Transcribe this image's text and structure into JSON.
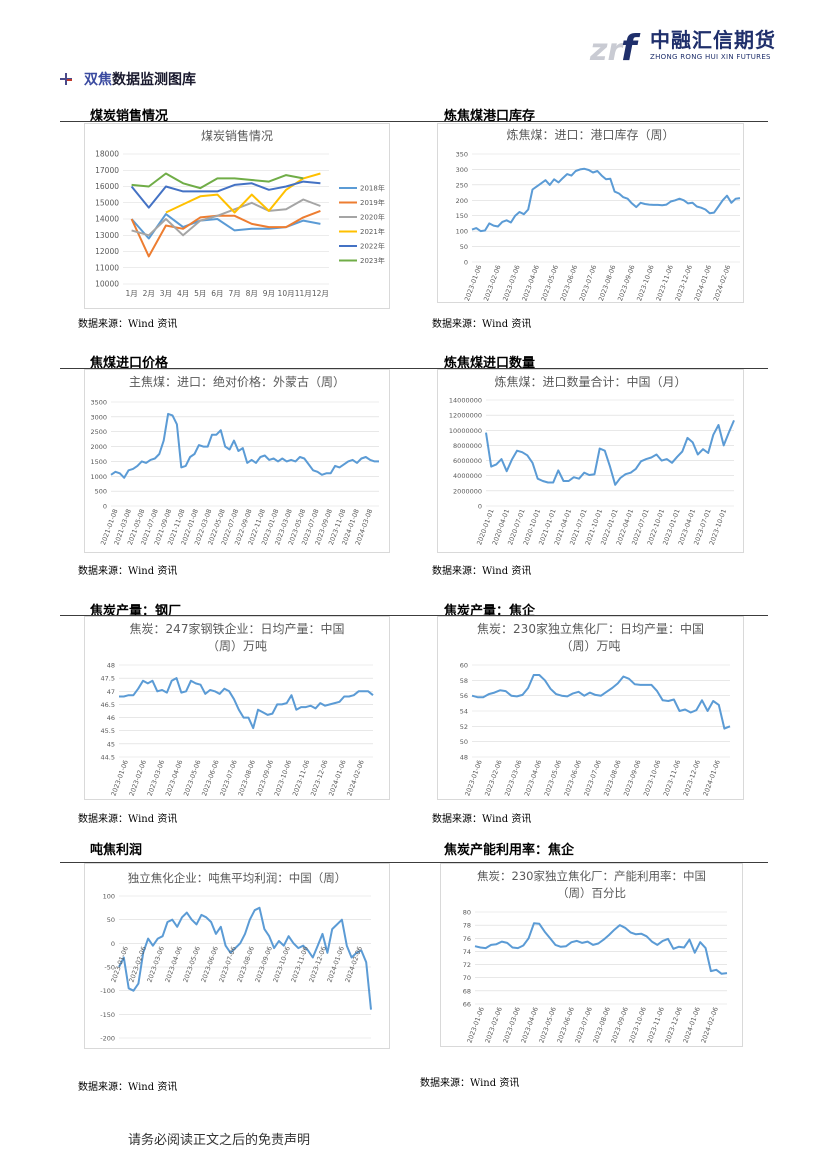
{
  "header": {
    "logo_mark": "zrf",
    "logo_cn": "中融汇信期货",
    "logo_en": "ZHONG RONG HUI XIN FUTURES",
    "logo_color": "#1f2f6b",
    "section_title_a": "双焦",
    "section_title_b": "数据监测图库"
  },
  "source_label": "数据来源：Wind 资讯",
  "footer": "请务必阅读正文之后的免责声明",
  "chart_titles": {
    "c1": "煤炭销售情况",
    "c2": "炼焦煤港口库存",
    "c3": "焦煤进口价格",
    "c4": "炼焦煤进口数量",
    "c5": "焦炭产量：钢厂",
    "c6": "焦炭产量：焦企",
    "c7": "吨焦利润",
    "c8": "焦炭产能利用率：焦企"
  },
  "chart_data": [
    {
      "id": "c1",
      "type": "line",
      "title": "煤炭销售情况",
      "categories": [
        "1月",
        "2月",
        "3月",
        "4月",
        "5月",
        "6月",
        "7月",
        "8月",
        "9月",
        "10月",
        "11月",
        "12月"
      ],
      "ylim": [
        10000,
        18000
      ],
      "yticks": [
        10000,
        11000,
        12000,
        13000,
        14000,
        15000,
        16000,
        17000,
        18000
      ],
      "legend": "right",
      "series": [
        {
          "name": "2018年",
          "color": "#5b9bd5",
          "values": [
            14000,
            12800,
            14300,
            13500,
            13900,
            14000,
            13300,
            13400,
            13400,
            13500,
            13900,
            13700
          ]
        },
        {
          "name": "2019年",
          "color": "#ed7d31",
          "values": [
            14000,
            11700,
            13600,
            13400,
            14100,
            14200,
            14200,
            13700,
            13500,
            13500,
            14100,
            14500
          ]
        },
        {
          "name": "2020年",
          "color": "#a5a5a5",
          "values": [
            13300,
            13000,
            14000,
            13000,
            13900,
            14200,
            14600,
            15000,
            14500,
            14600,
            15200,
            14800
          ]
        },
        {
          "name": "2021年",
          "color": "#ffc000",
          "values": [
            null,
            null,
            14400,
            14900,
            15400,
            15500,
            14400,
            15500,
            14500,
            15800,
            16500,
            16800
          ]
        },
        {
          "name": "2022年",
          "color": "#4472c4",
          "values": [
            16000,
            14700,
            16000,
            15700,
            15700,
            15700,
            16100,
            16200,
            15800,
            16000,
            16300,
            16200
          ]
        },
        {
          "name": "2023年",
          "color": "#70ad47",
          "values": [
            16100,
            16000,
            16800,
            16200,
            15900,
            16500,
            16500,
            16400,
            16300,
            16700,
            16500,
            null
          ]
        }
      ]
    },
    {
      "id": "c2",
      "type": "line",
      "title": "炼焦煤：进口：港口库存（周）",
      "ylim": [
        0,
        350
      ],
      "yticks": [
        0,
        50,
        100,
        150,
        200,
        250,
        300,
        350
      ],
      "xticks": [
        "2023-01-06",
        "2023-02-06",
        "2023-03-06",
        "2023-04-06",
        "2023-05-06",
        "2023-06-06",
        "2023-07-06",
        "2023-08-06",
        "2023-09-06",
        "2023-10-06",
        "2023-11-06",
        "2023-12-06",
        "2024-01-06",
        "2024-02-06"
      ],
      "series": [
        {
          "color": "#5b9bd5",
          "values": [
            105,
            110,
            100,
            102,
            125,
            118,
            115,
            130,
            135,
            128,
            150,
            162,
            155,
            170,
            235,
            245,
            255,
            265,
            250,
            268,
            258,
            272,
            285,
            280,
            295,
            300,
            302,
            298,
            290,
            295,
            280,
            268,
            270,
            228,
            222,
            210,
            205,
            190,
            178,
            192,
            188,
            186,
            185,
            185,
            184,
            186,
            196,
            200,
            205,
            200,
            190,
            192,
            180,
            176,
            170,
            158,
            160,
            180,
            200,
            215,
            192,
            205,
            207
          ]
        }
      ]
    },
    {
      "id": "c3",
      "type": "line",
      "title": "主焦煤：进口：绝对价格：外蒙古（周）",
      "ylim": [
        0,
        3500
      ],
      "yticks": [
        0,
        500,
        1000,
        1500,
        2000,
        2500,
        3000,
        3500
      ],
      "xticks": [
        "2021-01-08",
        "2021-03-08",
        "2021-05-08",
        "2021-07-08",
        "2021-09-08",
        "2021-11-08",
        "2022-01-08",
        "2022-03-08",
        "2022-05-08",
        "2022-07-08",
        "2022-09-08",
        "2022-11-08",
        "2023-01-08",
        "2023-03-08",
        "2023-05-08",
        "2023-07-08",
        "2023-09-08",
        "2023-11-08",
        "2024-01-08",
        "2024-03-08"
      ],
      "series": [
        {
          "color": "#5b9bd5",
          "values": [
            1050,
            1150,
            1100,
            950,
            1200,
            1250,
            1350,
            1500,
            1450,
            1550,
            1600,
            1750,
            2200,
            3100,
            3050,
            2750,
            1300,
            1350,
            1650,
            1750,
            2050,
            2000,
            2000,
            2400,
            2400,
            2550,
            2000,
            1900,
            2200,
            1850,
            1950,
            1450,
            1550,
            1450,
            1650,
            1700,
            1550,
            1600,
            1500,
            1600,
            1500,
            1550,
            1500,
            1650,
            1600,
            1400,
            1200,
            1150,
            1050,
            1100,
            1100,
            1350,
            1300,
            1400,
            1500,
            1550,
            1450,
            1600,
            1650,
            1550,
            1500,
            1500
          ]
        }
      ]
    },
    {
      "id": "c4",
      "type": "line",
      "title": "炼焦煤：进口数量合计：中国（月）",
      "ylim": [
        0,
        14000000
      ],
      "yticks": [
        0,
        2000000,
        4000000,
        6000000,
        8000000,
        10000000,
        12000000,
        14000000
      ],
      "xticks": [
        "2020-01-01",
        "2020-04-01",
        "2020-07-01",
        "2020-10-01",
        "2021-01-01",
        "2021-04-01",
        "2021-07-01",
        "2021-10-01",
        "2022-01-01",
        "2022-04-01",
        "2022-07-01",
        "2022-10-01",
        "2023-01-01",
        "2023-04-01",
        "2023-07-01",
        "2023-10-01"
      ],
      "series": [
        {
          "color": "#5b9bd5",
          "values": [
            9700000,
            5200000,
            5500000,
            6200000,
            4600000,
            6100000,
            7300000,
            7100000,
            6700000,
            5700000,
            3600000,
            3300000,
            3100000,
            3100000,
            4700000,
            3300000,
            3300000,
            3800000,
            3600000,
            4400000,
            4100000,
            4200000,
            7600000,
            7300000,
            5200000,
            2800000,
            3700000,
            4200000,
            4400000,
            4900000,
            5900000,
            6200000,
            6400000,
            6800000,
            6000000,
            6200000,
            5700000,
            6500000,
            7200000,
            9000000,
            8400000,
            6800000,
            7500000,
            7000000,
            9400000,
            10700000,
            8000000,
            9700000,
            11300000
          ]
        }
      ]
    },
    {
      "id": "c5",
      "type": "line",
      "title": "焦炭：247家钢铁企业：日均产量：中国（周）万吨",
      "ylim": [
        44.5,
        48
      ],
      "yticks": [
        44.5,
        45,
        45.5,
        46,
        46.5,
        47,
        47.5,
        48
      ],
      "xticks": [
        "2023-01-06",
        "2023-02-06",
        "2023-03-06",
        "2023-04-06",
        "2023-05-06",
        "2023-06-06",
        "2023-07-06",
        "2023-08-06",
        "2023-09-06",
        "2023-10-06",
        "2023-11-06",
        "2023-12-06",
        "2024-01-06",
        "2024-02-06"
      ],
      "series": [
        {
          "color": "#5b9bd5",
          "values": [
            46.8,
            46.8,
            46.85,
            46.85,
            47.1,
            47.4,
            47.3,
            47.4,
            47.0,
            47.05,
            46.95,
            47.4,
            47.5,
            46.95,
            47.0,
            47.4,
            47.3,
            47.25,
            46.9,
            47.05,
            47.0,
            46.9,
            47.1,
            47.0,
            46.7,
            46.3,
            46.0,
            46.0,
            45.6,
            46.3,
            46.2,
            46.1,
            46.15,
            46.5,
            46.5,
            46.55,
            46.85,
            46.3,
            46.4,
            46.4,
            46.45,
            46.35,
            46.55,
            46.45,
            46.5,
            46.55,
            46.6,
            46.8,
            46.8,
            46.85,
            47.0,
            47.0,
            47.0,
            46.85
          ]
        }
      ]
    },
    {
      "id": "c6",
      "type": "line",
      "title": "焦炭：230家独立焦化厂：日均产量：中国（周）万吨",
      "ylim": [
        48,
        60
      ],
      "yticks": [
        48,
        50,
        52,
        54,
        56,
        58,
        60
      ],
      "xticks": [
        "2023-01-06",
        "2023-02-06",
        "2023-03-06",
        "2023-04-06",
        "2023-05-06",
        "2023-06-06",
        "2023-07-06",
        "2023-08-06",
        "2023-09-06",
        "2023-10-06",
        "2023-11-06",
        "2023-12-06",
        "2024-01-06"
      ],
      "series": [
        {
          "color": "#5b9bd5",
          "values": [
            56.0,
            55.8,
            55.8,
            56.2,
            56.4,
            56.7,
            56.6,
            56.0,
            55.9,
            56.1,
            57.0,
            58.7,
            58.7,
            58.0,
            56.9,
            56.2,
            56.0,
            55.9,
            56.3,
            56.5,
            56.0,
            56.4,
            56.1,
            56.0,
            56.5,
            57.0,
            57.6,
            58.5,
            58.2,
            57.5,
            57.4,
            57.4,
            57.4,
            56.6,
            55.4,
            55.3,
            55.5,
            54.0,
            54.2,
            53.8,
            54.1,
            55.4,
            54.0,
            55.3,
            54.8,
            51.7,
            52.0
          ]
        }
      ]
    },
    {
      "id": "c7",
      "type": "line",
      "title": "独立焦化企业：吨焦平均利润：中国（周）",
      "ylim": [
        -200,
        100
      ],
      "yticks": [
        -200,
        -150,
        -100,
        -50,
        0,
        50,
        100
      ],
      "xticks": [
        "2023-01-06",
        "2023-02-06",
        "2023-03-06",
        "2023-04-06",
        "2023-05-06",
        "2023-06-06",
        "2023-07-06",
        "2023-08-06",
        "2023-09-06",
        "2023-10-06",
        "2023-11-06",
        "2023-12-06",
        "2024-01-06",
        "2024-02-06"
      ],
      "series": [
        {
          "color": "#5b9bd5",
          "values": [
            -50,
            -30,
            -95,
            -100,
            -85,
            -20,
            10,
            -5,
            10,
            15,
            45,
            50,
            35,
            55,
            65,
            50,
            40,
            60,
            55,
            45,
            20,
            35,
            -5,
            -20,
            -10,
            0,
            20,
            50,
            70,
            75,
            30,
            15,
            -10,
            5,
            -5,
            15,
            0,
            -10,
            -5,
            -15,
            -30,
            -5,
            20,
            -20,
            30,
            40,
            50,
            -5,
            -30,
            -20,
            -15,
            -40,
            -140
          ]
        }
      ]
    },
    {
      "id": "c8",
      "type": "line",
      "title": "焦炭：230家独立焦化厂：产能利用率：中国（周）百分比",
      "ylim": [
        66,
        80
      ],
      "yticks": [
        66,
        68,
        70,
        72,
        74,
        76,
        78,
        80
      ],
      "xticks": [
        "2023-01-06",
        "2023-02-06",
        "2023-03-06",
        "2023-04-06",
        "2023-05-06",
        "2023-06-06",
        "2023-07-06",
        "2023-08-06",
        "2023-09-06",
        "2023-10-06",
        "2023-11-06",
        "2023-12-06",
        "2024-01-06",
        "2024-02-06"
      ],
      "series": [
        {
          "color": "#5b9bd5",
          "values": [
            74.8,
            74.6,
            74.5,
            75.0,
            75.1,
            75.5,
            75.3,
            74.6,
            74.5,
            74.9,
            76.0,
            78.3,
            78.2,
            77.0,
            76.0,
            75.0,
            74.7,
            74.8,
            75.4,
            75.6,
            75.3,
            75.5,
            75.0,
            75.2,
            75.8,
            76.5,
            77.3,
            78.0,
            77.6,
            76.9,
            76.6,
            76.7,
            76.3,
            75.5,
            75.0,
            75.6,
            75.9,
            74.4,
            74.7,
            74.6,
            75.8,
            73.8,
            75.4,
            74.5,
            71.0,
            71.2,
            70.6,
            70.7
          ]
        }
      ]
    }
  ]
}
